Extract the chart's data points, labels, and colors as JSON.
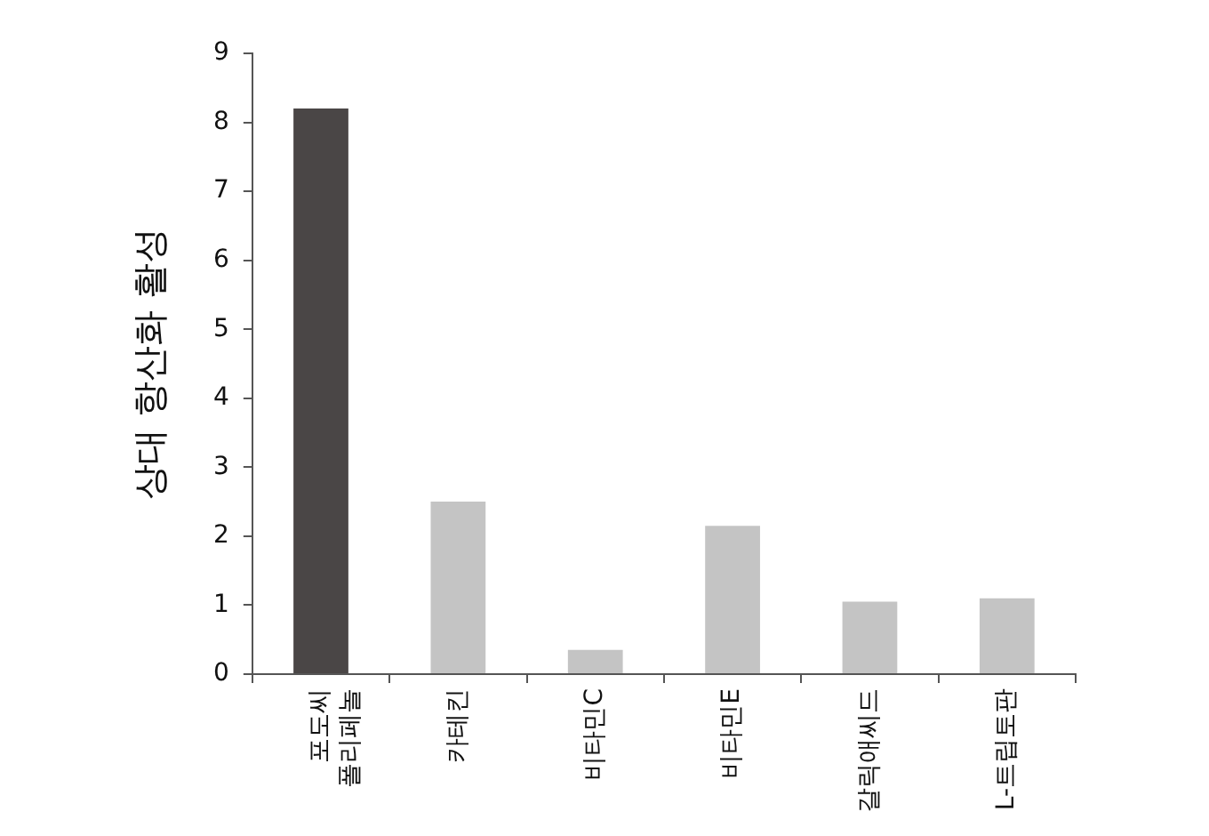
{
  "chart_data": {
    "type": "bar",
    "ylabel": "상대 항산화 활성",
    "categories": [
      "포도씨 폴리페놀",
      "카테킨",
      "비타민C",
      "비타민E",
      "갈릭애씨드",
      "L-트립토판"
    ],
    "values": [
      8.2,
      2.5,
      0.35,
      2.15,
      1.05,
      1.1
    ],
    "colors": [
      "#4a4646",
      "#c4c4c4",
      "#c4c4c4",
      "#c4c4c4",
      "#c4c4c4",
      "#c4c4c4"
    ],
    "ylim": [
      0,
      9
    ],
    "yticks": [
      0,
      1,
      2,
      3,
      4,
      5,
      6,
      7,
      8,
      9
    ],
    "grid": false,
    "legend": false
  }
}
